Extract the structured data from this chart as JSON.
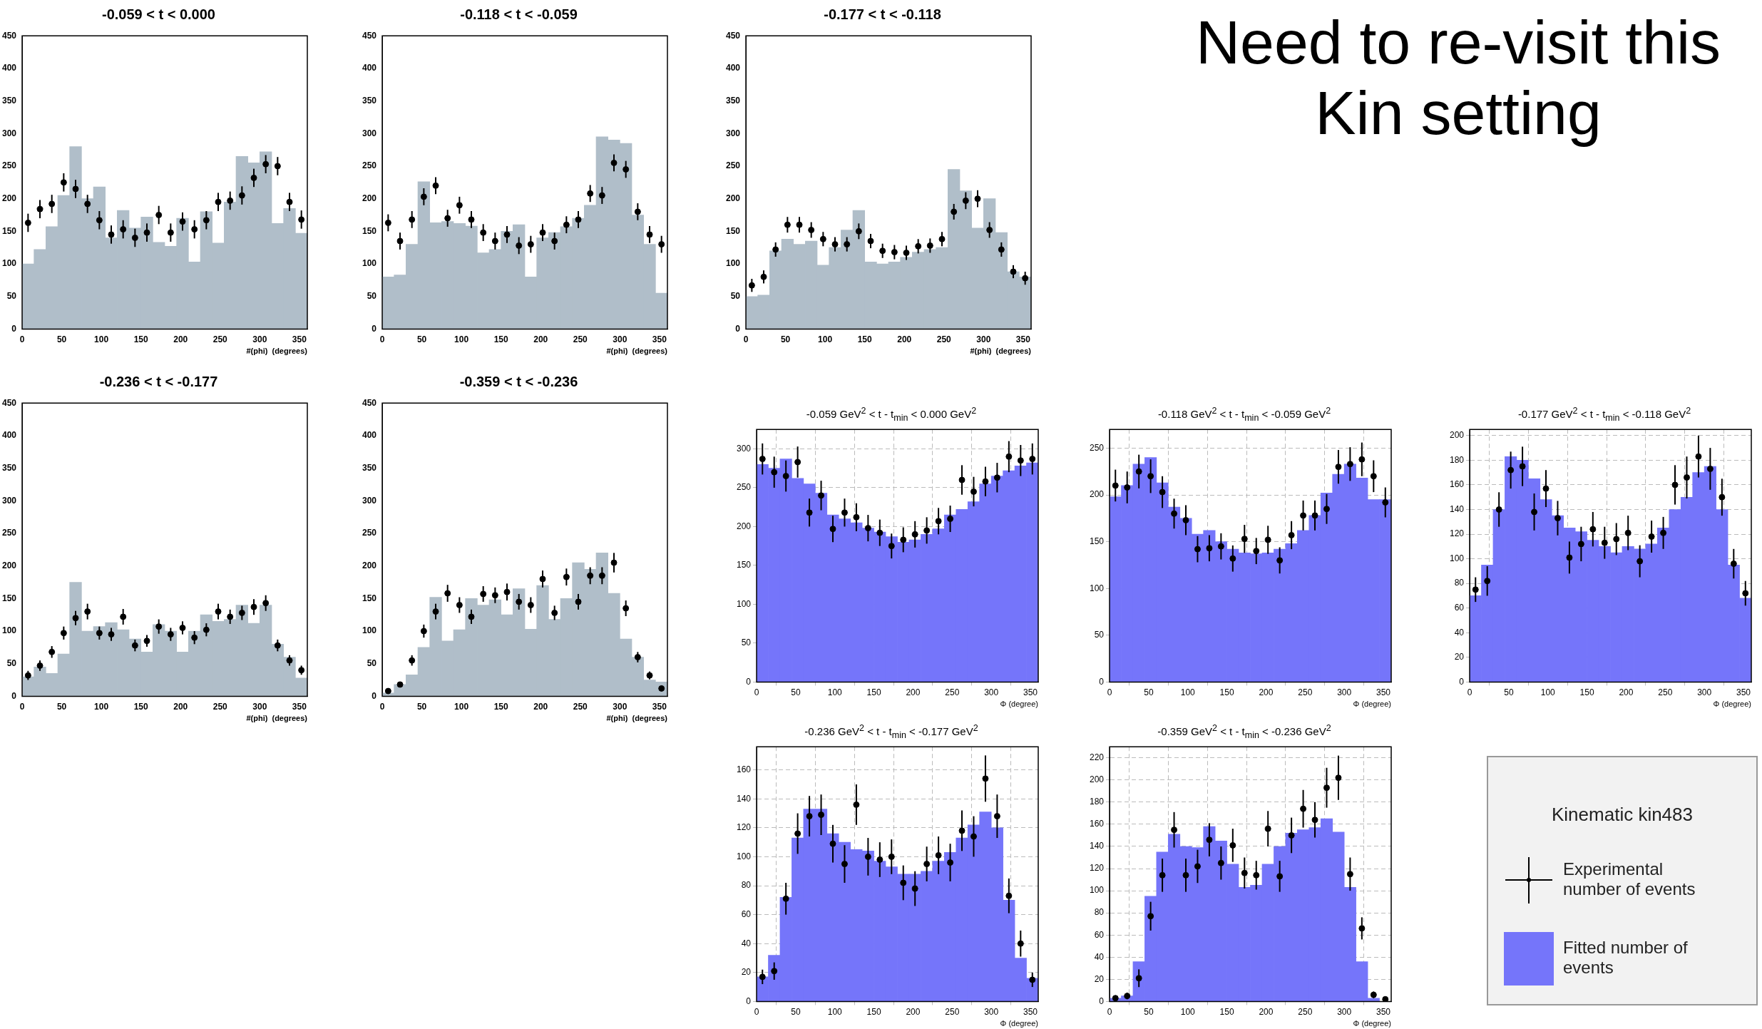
{
  "chart_data": [
    {
      "type": "histogram",
      "title": "-0.059 < t < 0.000",
      "xlabel": "#(phi)  (degrees)",
      "bins": [
        0,
        15,
        30,
        45,
        60,
        75,
        90,
        105,
        120,
        135,
        150,
        165,
        180,
        195,
        210,
        225,
        240,
        255,
        270,
        285,
        300,
        315,
        330,
        345,
        360
      ],
      "xlim": [
        0,
        360
      ],
      "xticks": [
        0,
        50,
        100,
        150,
        200,
        250,
        300,
        350
      ],
      "ylim": [
        0,
        450
      ],
      "yticks": [
        0,
        50,
        100,
        150,
        200,
        250,
        300,
        350,
        400,
        450
      ],
      "series": [
        {
          "type": "histogram",
          "color": "#b0bec9",
          "values": [
            100,
            122,
            157,
            205,
            280,
            200,
            218,
            140,
            182,
            155,
            172,
            133,
            127,
            170,
            103,
            180,
            132,
            195,
            265,
            255,
            272,
            162,
            185,
            147
          ]
        },
        {
          "type": "scatter",
          "color": "#000000",
          "marker": "circle",
          "x": [
            7.5,
            22.5,
            37.5,
            52.5,
            67.5,
            82.5,
            97.5,
            112.5,
            127.5,
            142.5,
            157.5,
            172.5,
            187.5,
            202.5,
            217.5,
            232.5,
            247.5,
            262.5,
            277.5,
            292.5,
            307.5,
            322.5,
            337.5,
            352.5
          ],
          "values": [
            163,
            184,
            192,
            225,
            215,
            192,
            167,
            145,
            153,
            140,
            148,
            175,
            148,
            165,
            153,
            167,
            195,
            197,
            205,
            232,
            253,
            250,
            195,
            168
          ],
          "errors": [
            14,
            14,
            14,
            14,
            14,
            14,
            14,
            14,
            14,
            14,
            14,
            14,
            14,
            14,
            14,
            14,
            14,
            14,
            14,
            14,
            14,
            14,
            14,
            14
          ]
        }
      ]
    },
    {
      "type": "histogram",
      "title": "-0.118 < t < -0.059",
      "xlabel": "#(phi)  (degrees)",
      "bins": [
        0,
        15,
        30,
        45,
        60,
        75,
        90,
        105,
        120,
        135,
        150,
        165,
        180,
        195,
        210,
        225,
        240,
        255,
        270,
        285,
        300,
        315,
        330,
        345,
        360
      ],
      "xlim": [
        0,
        360
      ],
      "xticks": [
        0,
        50,
        100,
        150,
        200,
        250,
        300,
        350
      ],
      "ylim": [
        0,
        450
      ],
      "yticks": [
        0,
        50,
        100,
        150,
        200,
        250,
        300,
        350,
        400,
        450
      ],
      "series": [
        {
          "type": "histogram",
          "color": "#b0bec9",
          "values": [
            80,
            83,
            130,
            226,
            163,
            165,
            162,
            158,
            117,
            122,
            150,
            160,
            80,
            140,
            148,
            157,
            170,
            190,
            295,
            290,
            285,
            175,
            130,
            55
          ]
        },
        {
          "type": "scatter",
          "color": "#000000",
          "marker": "circle",
          "x": [
            7.5,
            22.5,
            37.5,
            52.5,
            67.5,
            82.5,
            97.5,
            112.5,
            127.5,
            142.5,
            157.5,
            172.5,
            187.5,
            202.5,
            217.5,
            232.5,
            247.5,
            262.5,
            277.5,
            292.5,
            307.5,
            322.5,
            337.5,
            352.5
          ],
          "values": [
            163,
            135,
            168,
            203,
            220,
            170,
            190,
            168,
            148,
            135,
            145,
            128,
            130,
            148,
            135,
            160,
            168,
            208,
            205,
            255,
            245,
            180,
            145,
            130
          ],
          "errors": [
            13,
            13,
            13,
            13,
            13,
            13,
            13,
            13,
            13,
            13,
            13,
            13,
            13,
            13,
            13,
            13,
            13,
            13,
            13,
            13,
            13,
            13,
            13,
            13
          ]
        }
      ]
    },
    {
      "type": "histogram",
      "title": "-0.177 < t < -0.118",
      "xlabel": "#(phi)  (degrees)",
      "bins": [
        0,
        15,
        30,
        45,
        60,
        75,
        90,
        105,
        120,
        135,
        150,
        165,
        180,
        195,
        210,
        225,
        240,
        255,
        270,
        285,
        300,
        315,
        330,
        345,
        360
      ],
      "xlim": [
        0,
        360
      ],
      "xticks": [
        0,
        50,
        100,
        150,
        200,
        250,
        300,
        350
      ],
      "ylim": [
        0,
        450
      ],
      "yticks": [
        0,
        50,
        100,
        150,
        200,
        250,
        300,
        350,
        400,
        450
      ],
      "series": [
        {
          "type": "histogram",
          "color": "#b0bec9",
          "values": [
            50,
            52,
            120,
            138,
            130,
            135,
            98,
            125,
            152,
            182,
            103,
            100,
            103,
            110,
            118,
            122,
            125,
            245,
            212,
            155,
            200,
            148,
            88,
            80
          ]
        },
        {
          "type": "scatter",
          "color": "#000000",
          "marker": "circle",
          "x": [
            7.5,
            22.5,
            37.5,
            52.5,
            67.5,
            82.5,
            97.5,
            112.5,
            127.5,
            142.5,
            157.5,
            172.5,
            187.5,
            202.5,
            217.5,
            232.5,
            247.5,
            262.5,
            277.5,
            292.5,
            307.5,
            322.5,
            337.5,
            352.5
          ],
          "values": [
            67,
            80,
            122,
            160,
            160,
            152,
            138,
            130,
            130,
            150,
            135,
            120,
            118,
            117,
            127,
            128,
            138,
            180,
            197,
            200,
            152,
            122,
            88,
            78
          ],
          "errors": [
            10,
            10,
            11,
            12,
            12,
            12,
            11,
            11,
            11,
            12,
            11,
            11,
            11,
            11,
            11,
            11,
            11,
            12,
            13,
            13,
            12,
            11,
            10,
            10
          ]
        }
      ]
    },
    {
      "type": "histogram",
      "title": "-0.236 < t < -0.177",
      "xlabel": "#(phi)  (degrees)",
      "bins": [
        0,
        15,
        30,
        45,
        60,
        75,
        90,
        105,
        120,
        135,
        150,
        165,
        180,
        195,
        210,
        225,
        240,
        255,
        270,
        285,
        300,
        315,
        330,
        345,
        360
      ],
      "xlim": [
        0,
        360
      ],
      "xticks": [
        0,
        50,
        100,
        150,
        200,
        250,
        300,
        350
      ],
      "ylim": [
        0,
        450
      ],
      "yticks": [
        0,
        50,
        100,
        150,
        200,
        250,
        300,
        350,
        400,
        450
      ],
      "series": [
        {
          "type": "histogram",
          "color": "#b0bec9",
          "values": [
            30,
            45,
            35,
            65,
            175,
            100,
            107,
            113,
            102,
            88,
            68,
            110,
            100,
            68,
            100,
            125,
            115,
            118,
            140,
            112,
            140,
            80,
            60,
            28
          ]
        },
        {
          "type": "scatter",
          "color": "#000000",
          "marker": "circle",
          "x": [
            7.5,
            22.5,
            37.5,
            52.5,
            67.5,
            82.5,
            97.5,
            112.5,
            127.5,
            142.5,
            157.5,
            172.5,
            187.5,
            202.5,
            217.5,
            232.5,
            247.5,
            262.5,
            277.5,
            292.5,
            307.5,
            322.5,
            337.5,
            352.5
          ],
          "values": [
            32,
            47,
            68,
            97,
            120,
            130,
            97,
            95,
            122,
            78,
            85,
            107,
            95,
            105,
            90,
            102,
            130,
            122,
            128,
            137,
            143,
            78,
            55,
            40
          ],
          "errors": [
            7,
            8,
            9,
            10,
            11,
            12,
            10,
            10,
            12,
            9,
            9,
            11,
            10,
            10,
            10,
            10,
            12,
            11,
            11,
            12,
            12,
            9,
            8,
            7
          ]
        }
      ]
    },
    {
      "type": "histogram",
      "title": "-0.359 < t < -0.236",
      "xlabel": "#(phi)  (degrees)",
      "bins": [
        0,
        15,
        30,
        45,
        60,
        75,
        90,
        105,
        120,
        135,
        150,
        165,
        180,
        195,
        210,
        225,
        240,
        255,
        270,
        285,
        300,
        315,
        330,
        345,
        360
      ],
      "xlim": [
        0,
        360
      ],
      "xticks": [
        0,
        50,
        100,
        150,
        200,
        250,
        300,
        350
      ],
      "ylim": [
        0,
        450
      ],
      "yticks": [
        0,
        50,
        100,
        150,
        200,
        250,
        300,
        350,
        400,
        450
      ],
      "series": [
        {
          "type": "histogram",
          "color": "#b0bec9",
          "values": [
            5,
            18,
            33,
            75,
            152,
            85,
            102,
            150,
            140,
            148,
            125,
            165,
            103,
            170,
            118,
            150,
            205,
            195,
            220,
            158,
            88,
            60,
            25,
            22
          ]
        },
        {
          "type": "scatter",
          "color": "#000000",
          "marker": "circle",
          "x": [
            7.5,
            22.5,
            37.5,
            52.5,
            67.5,
            82.5,
            97.5,
            112.5,
            127.5,
            142.5,
            157.5,
            172.5,
            187.5,
            202.5,
            217.5,
            232.5,
            247.5,
            262.5,
            277.5,
            292.5,
            307.5,
            322.5,
            337.5,
            352.5
          ],
          "values": [
            8,
            18,
            55,
            100,
            130,
            158,
            140,
            122,
            157,
            155,
            160,
            145,
            140,
            180,
            128,
            183,
            145,
            185,
            185,
            205,
            135,
            60,
            32,
            12
          ],
          "errors": [
            4,
            4,
            8,
            10,
            12,
            13,
            12,
            11,
            12,
            12,
            13,
            12,
            12,
            13,
            11,
            13,
            12,
            13,
            13,
            15,
            12,
            8,
            6,
            4
          ]
        }
      ]
    },
    {
      "type": "histogram",
      "title": "-0.059 GeV$^{2}$ < t - t$_{min}$ < 0.000 GeV$^{2}$",
      "xlabel": "Φ (degree)",
      "grid": true,
      "bins": [
        0,
        15,
        30,
        45,
        60,
        75,
        90,
        105,
        120,
        135,
        150,
        165,
        180,
        195,
        210,
        225,
        240,
        255,
        270,
        285,
        300,
        315,
        330,
        345,
        360
      ],
      "xlim": [
        0,
        360
      ],
      "xticks": [
        0,
        50,
        100,
        150,
        200,
        250,
        300,
        350
      ],
      "ylim": [
        0,
        325
      ],
      "yticks": [
        0,
        50,
        100,
        150,
        200,
        250,
        300
      ],
      "series": [
        {
          "type": "histogram",
          "color": "#7575fa",
          "values": [
            280,
            275,
            287,
            262,
            255,
            243,
            215,
            210,
            205,
            198,
            193,
            187,
            180,
            183,
            190,
            197,
            215,
            222,
            232,
            255,
            265,
            272,
            278,
            282
          ]
        },
        {
          "type": "scatter",
          "color": "#000000",
          "marker": "circle",
          "x": [
            7.5,
            22.5,
            37.5,
            52.5,
            67.5,
            82.5,
            97.5,
            112.5,
            127.5,
            142.5,
            157.5,
            172.5,
            187.5,
            202.5,
            217.5,
            232.5,
            247.5,
            262.5,
            277.5,
            292.5,
            307.5,
            322.5,
            337.5,
            352.5
          ],
          "values": [
            287,
            270,
            265,
            283,
            218,
            240,
            197,
            218,
            212,
            198,
            192,
            175,
            183,
            190,
            195,
            207,
            210,
            260,
            245,
            258,
            263,
            290,
            285,
            287
          ],
          "errors": [
            20,
            20,
            20,
            20,
            18,
            19,
            17,
            18,
            18,
            17,
            17,
            16,
            16,
            17,
            17,
            17,
            17,
            19,
            19,
            19,
            19,
            20,
            20,
            20
          ]
        }
      ]
    },
    {
      "type": "histogram",
      "title": "-0.118 GeV$^{2}$ < t - t$_{min}$ < -0.059 GeV$^{2}$",
      "xlabel": "Φ (degree)",
      "grid": true,
      "bins": [
        0,
        15,
        30,
        45,
        60,
        75,
        90,
        105,
        120,
        135,
        150,
        165,
        180,
        195,
        210,
        225,
        240,
        255,
        270,
        285,
        300,
        315,
        330,
        345,
        360
      ],
      "xlim": [
        0,
        360
      ],
      "xticks": [
        0,
        50,
        100,
        150,
        200,
        250,
        300,
        350
      ],
      "ylim": [
        0,
        270
      ],
      "yticks": [
        0,
        50,
        100,
        150,
        200,
        250
      ],
      "series": [
        {
          "type": "histogram",
          "color": "#7575fa",
          "values": [
            198,
            210,
            233,
            240,
            213,
            187,
            175,
            158,
            162,
            150,
            142,
            138,
            137,
            138,
            142,
            148,
            162,
            178,
            202,
            222,
            233,
            218,
            195,
            195
          ]
        },
        {
          "type": "scatter",
          "color": "#000000",
          "marker": "circle",
          "x": [
            7.5,
            22.5,
            37.5,
            52.5,
            67.5,
            82.5,
            97.5,
            112.5,
            127.5,
            142.5,
            157.5,
            172.5,
            187.5,
            202.5,
            217.5,
            232.5,
            247.5,
            262.5,
            277.5,
            292.5,
            307.5,
            322.5,
            337.5,
            352.5
          ],
          "values": [
            210,
            208,
            225,
            220,
            203,
            180,
            173,
            142,
            143,
            145,
            132,
            153,
            140,
            152,
            130,
            157,
            178,
            178,
            185,
            230,
            233,
            238,
            220,
            192
          ],
          "errors": [
            17,
            17,
            18,
            18,
            17,
            16,
            16,
            14,
            14,
            14,
            14,
            15,
            14,
            15,
            14,
            15,
            16,
            16,
            16,
            18,
            18,
            18,
            17,
            16
          ]
        }
      ]
    },
    {
      "type": "histogram",
      "title": "-0.177 GeV$^{2}$ < t - t$_{min}$ < -0.118 GeV$^{2}$",
      "xlabel": "Φ (degree)",
      "grid": true,
      "bins": [
        0,
        15,
        30,
        45,
        60,
        75,
        90,
        105,
        120,
        135,
        150,
        165,
        180,
        195,
        210,
        225,
        240,
        255,
        270,
        285,
        300,
        315,
        330,
        345,
        360
      ],
      "xlim": [
        0,
        360
      ],
      "xticks": [
        0,
        50,
        100,
        150,
        200,
        250,
        300,
        350
      ],
      "ylim": [
        0,
        205
      ],
      "yticks": [
        0,
        20,
        40,
        60,
        80,
        100,
        120,
        140,
        160,
        180,
        200
      ],
      "series": [
        {
          "type": "histogram",
          "color": "#7575fa",
          "values": [
            70,
            95,
            140,
            183,
            180,
            165,
            148,
            135,
            125,
            122,
            115,
            110,
            105,
            110,
            108,
            112,
            125,
            140,
            150,
            170,
            175,
            140,
            95,
            68
          ]
        },
        {
          "type": "scatter",
          "color": "#000000",
          "marker": "circle",
          "x": [
            7.5,
            22.5,
            37.5,
            52.5,
            67.5,
            82.5,
            97.5,
            112.5,
            127.5,
            142.5,
            157.5,
            172.5,
            187.5,
            202.5,
            217.5,
            232.5,
            247.5,
            262.5,
            277.5,
            292.5,
            307.5,
            322.5,
            337.5,
            352.5
          ],
          "values": [
            75,
            82,
            140,
            172,
            175,
            138,
            157,
            133,
            101,
            112,
            124,
            113,
            116,
            121,
            98,
            118,
            121,
            160,
            166,
            183,
            173,
            150,
            96,
            72
          ],
          "errors": [
            10,
            12,
            14,
            15,
            16,
            15,
            15,
            14,
            13,
            14,
            14,
            13,
            13,
            14,
            13,
            13,
            13,
            16,
            17,
            17,
            17,
            15,
            12,
            10
          ]
        }
      ]
    },
    {
      "type": "histogram",
      "title": "-0.236 GeV$^{2}$ < t - t$_{min}$ < -0.177 GeV$^{2}$",
      "xlabel": "Φ (degree)",
      "grid": true,
      "bins": [
        0,
        15,
        30,
        45,
        60,
        75,
        90,
        105,
        120,
        135,
        150,
        165,
        180,
        195,
        210,
        225,
        240,
        255,
        270,
        285,
        300,
        315,
        330,
        345,
        360
      ],
      "xlim": [
        0,
        360
      ],
      "xticks": [
        0,
        50,
        100,
        150,
        200,
        250,
        300,
        350
      ],
      "ylim": [
        0,
        176
      ],
      "yticks": [
        0,
        20,
        40,
        60,
        80,
        100,
        120,
        140,
        160
      ],
      "series": [
        {
          "type": "histogram",
          "color": "#7575fa",
          "values": [
            17,
            32,
            72,
            113,
            133,
            133,
            116,
            110,
            105,
            104,
            97,
            93,
            88,
            88,
            90,
            97,
            103,
            113,
            122,
            131,
            120,
            70,
            30,
            16
          ]
        },
        {
          "type": "scatter",
          "color": "#000000",
          "marker": "circle",
          "x": [
            7.5,
            22.5,
            37.5,
            52.5,
            67.5,
            82.5,
            97.5,
            112.5,
            127.5,
            142.5,
            157.5,
            172.5,
            187.5,
            202.5,
            217.5,
            232.5,
            247.5,
            262.5,
            277.5,
            292.5,
            307.5,
            322.5,
            337.5,
            352.5
          ],
          "values": [
            17,
            21,
            71,
            116,
            128,
            129,
            109,
            95,
            136,
            100,
            98,
            100,
            82,
            78,
            95,
            101,
            96,
            118,
            114,
            154,
            128,
            73,
            40,
            15
          ],
          "errors": [
            5,
            6,
            11,
            14,
            14,
            14,
            13,
            13,
            14,
            13,
            12,
            12,
            12,
            12,
            12,
            13,
            13,
            14,
            14,
            16,
            15,
            12,
            9,
            5
          ]
        }
      ]
    },
    {
      "type": "histogram",
      "title": "-0.359 GeV$^{2}$ < t - t$_{min}$ < -0.236 GeV$^{2}$",
      "xlabel": "Φ (degree)",
      "grid": true,
      "legend": "right",
      "legend_title": "Kinematic kin483",
      "bins": [
        0,
        15,
        30,
        45,
        60,
        75,
        90,
        105,
        120,
        135,
        150,
        165,
        180,
        195,
        210,
        225,
        240,
        255,
        270,
        285,
        300,
        315,
        330,
        345,
        360
      ],
      "xlim": [
        0,
        360
      ],
      "xticks": [
        0,
        50,
        100,
        150,
        200,
        250,
        300,
        350
      ],
      "ylim": [
        0,
        230
      ],
      "yticks": [
        0,
        20,
        40,
        60,
        80,
        100,
        120,
        140,
        160,
        180,
        200,
        220
      ],
      "series": [
        {
          "type": "histogram",
          "name": "Fitted number of events",
          "color": "#7575fa",
          "values": [
            3,
            5,
            36,
            95,
            135,
            151,
            140,
            139,
            158,
            145,
            124,
            103,
            105,
            124,
            140,
            152,
            155,
            157,
            165,
            153,
            103,
            36,
            3,
            0
          ]
        },
        {
          "type": "scatter",
          "name": "Experimental number of events",
          "color": "#000000",
          "marker": "circle",
          "x": [
            7.5,
            22.5,
            37.5,
            52.5,
            67.5,
            82.5,
            97.5,
            112.5,
            127.5,
            142.5,
            157.5,
            172.5,
            187.5,
            202.5,
            217.5,
            232.5,
            247.5,
            262.5,
            277.5,
            292.5,
            307.5,
            322.5,
            337.5,
            352.5
          ],
          "values": [
            3,
            5,
            21,
            77,
            114,
            155,
            114,
            122,
            146,
            125,
            141,
            116,
            114,
            156,
            113,
            150,
            174,
            164,
            193,
            202,
            115,
            66,
            6,
            2
          ],
          "errors": [
            2,
            3,
            8,
            13,
            15,
            16,
            15,
            15,
            15,
            15,
            15,
            14,
            13,
            16,
            14,
            16,
            17,
            16,
            18,
            20,
            15,
            10,
            3,
            2
          ]
        }
      ]
    },
    {
      "type": "other",
      "title": "Need to re-visit this Kin setting"
    }
  ]
}
